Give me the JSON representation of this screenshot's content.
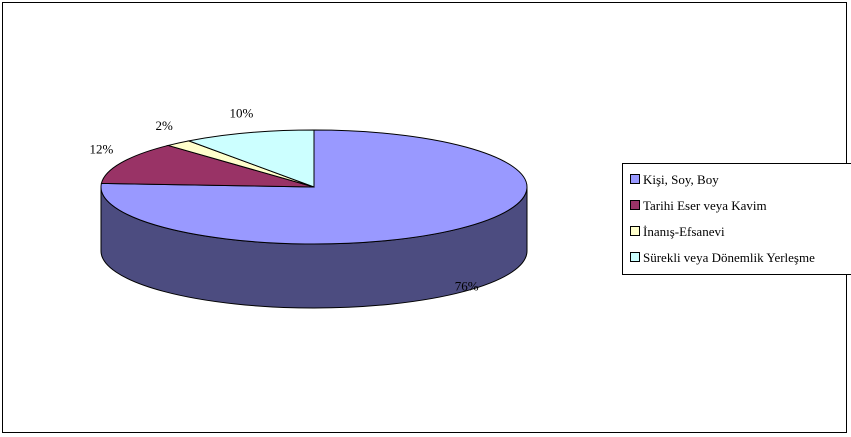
{
  "chart_data": {
    "type": "pie",
    "style": "3d",
    "series": [
      {
        "name": "",
        "values": [
          76,
          12,
          2,
          10
        ]
      }
    ],
    "categories": [
      "Kişi, Soy, Boy",
      "Tarihi Eser veya Kavim",
      "İnanış-Efsanevi",
      "Sürekli veya Dönemlik Yerleşme"
    ],
    "data_labels": [
      "76%",
      "12%",
      "2%",
      "10%"
    ],
    "colors": [
      "#9999FF",
      "#993366",
      "#FFFFCC",
      "#CCFFFF"
    ],
    "side_colors": [
      "#4C4C80",
      "#4D1A33",
      "#808066",
      "#668080"
    ],
    "legend_position": "right"
  }
}
